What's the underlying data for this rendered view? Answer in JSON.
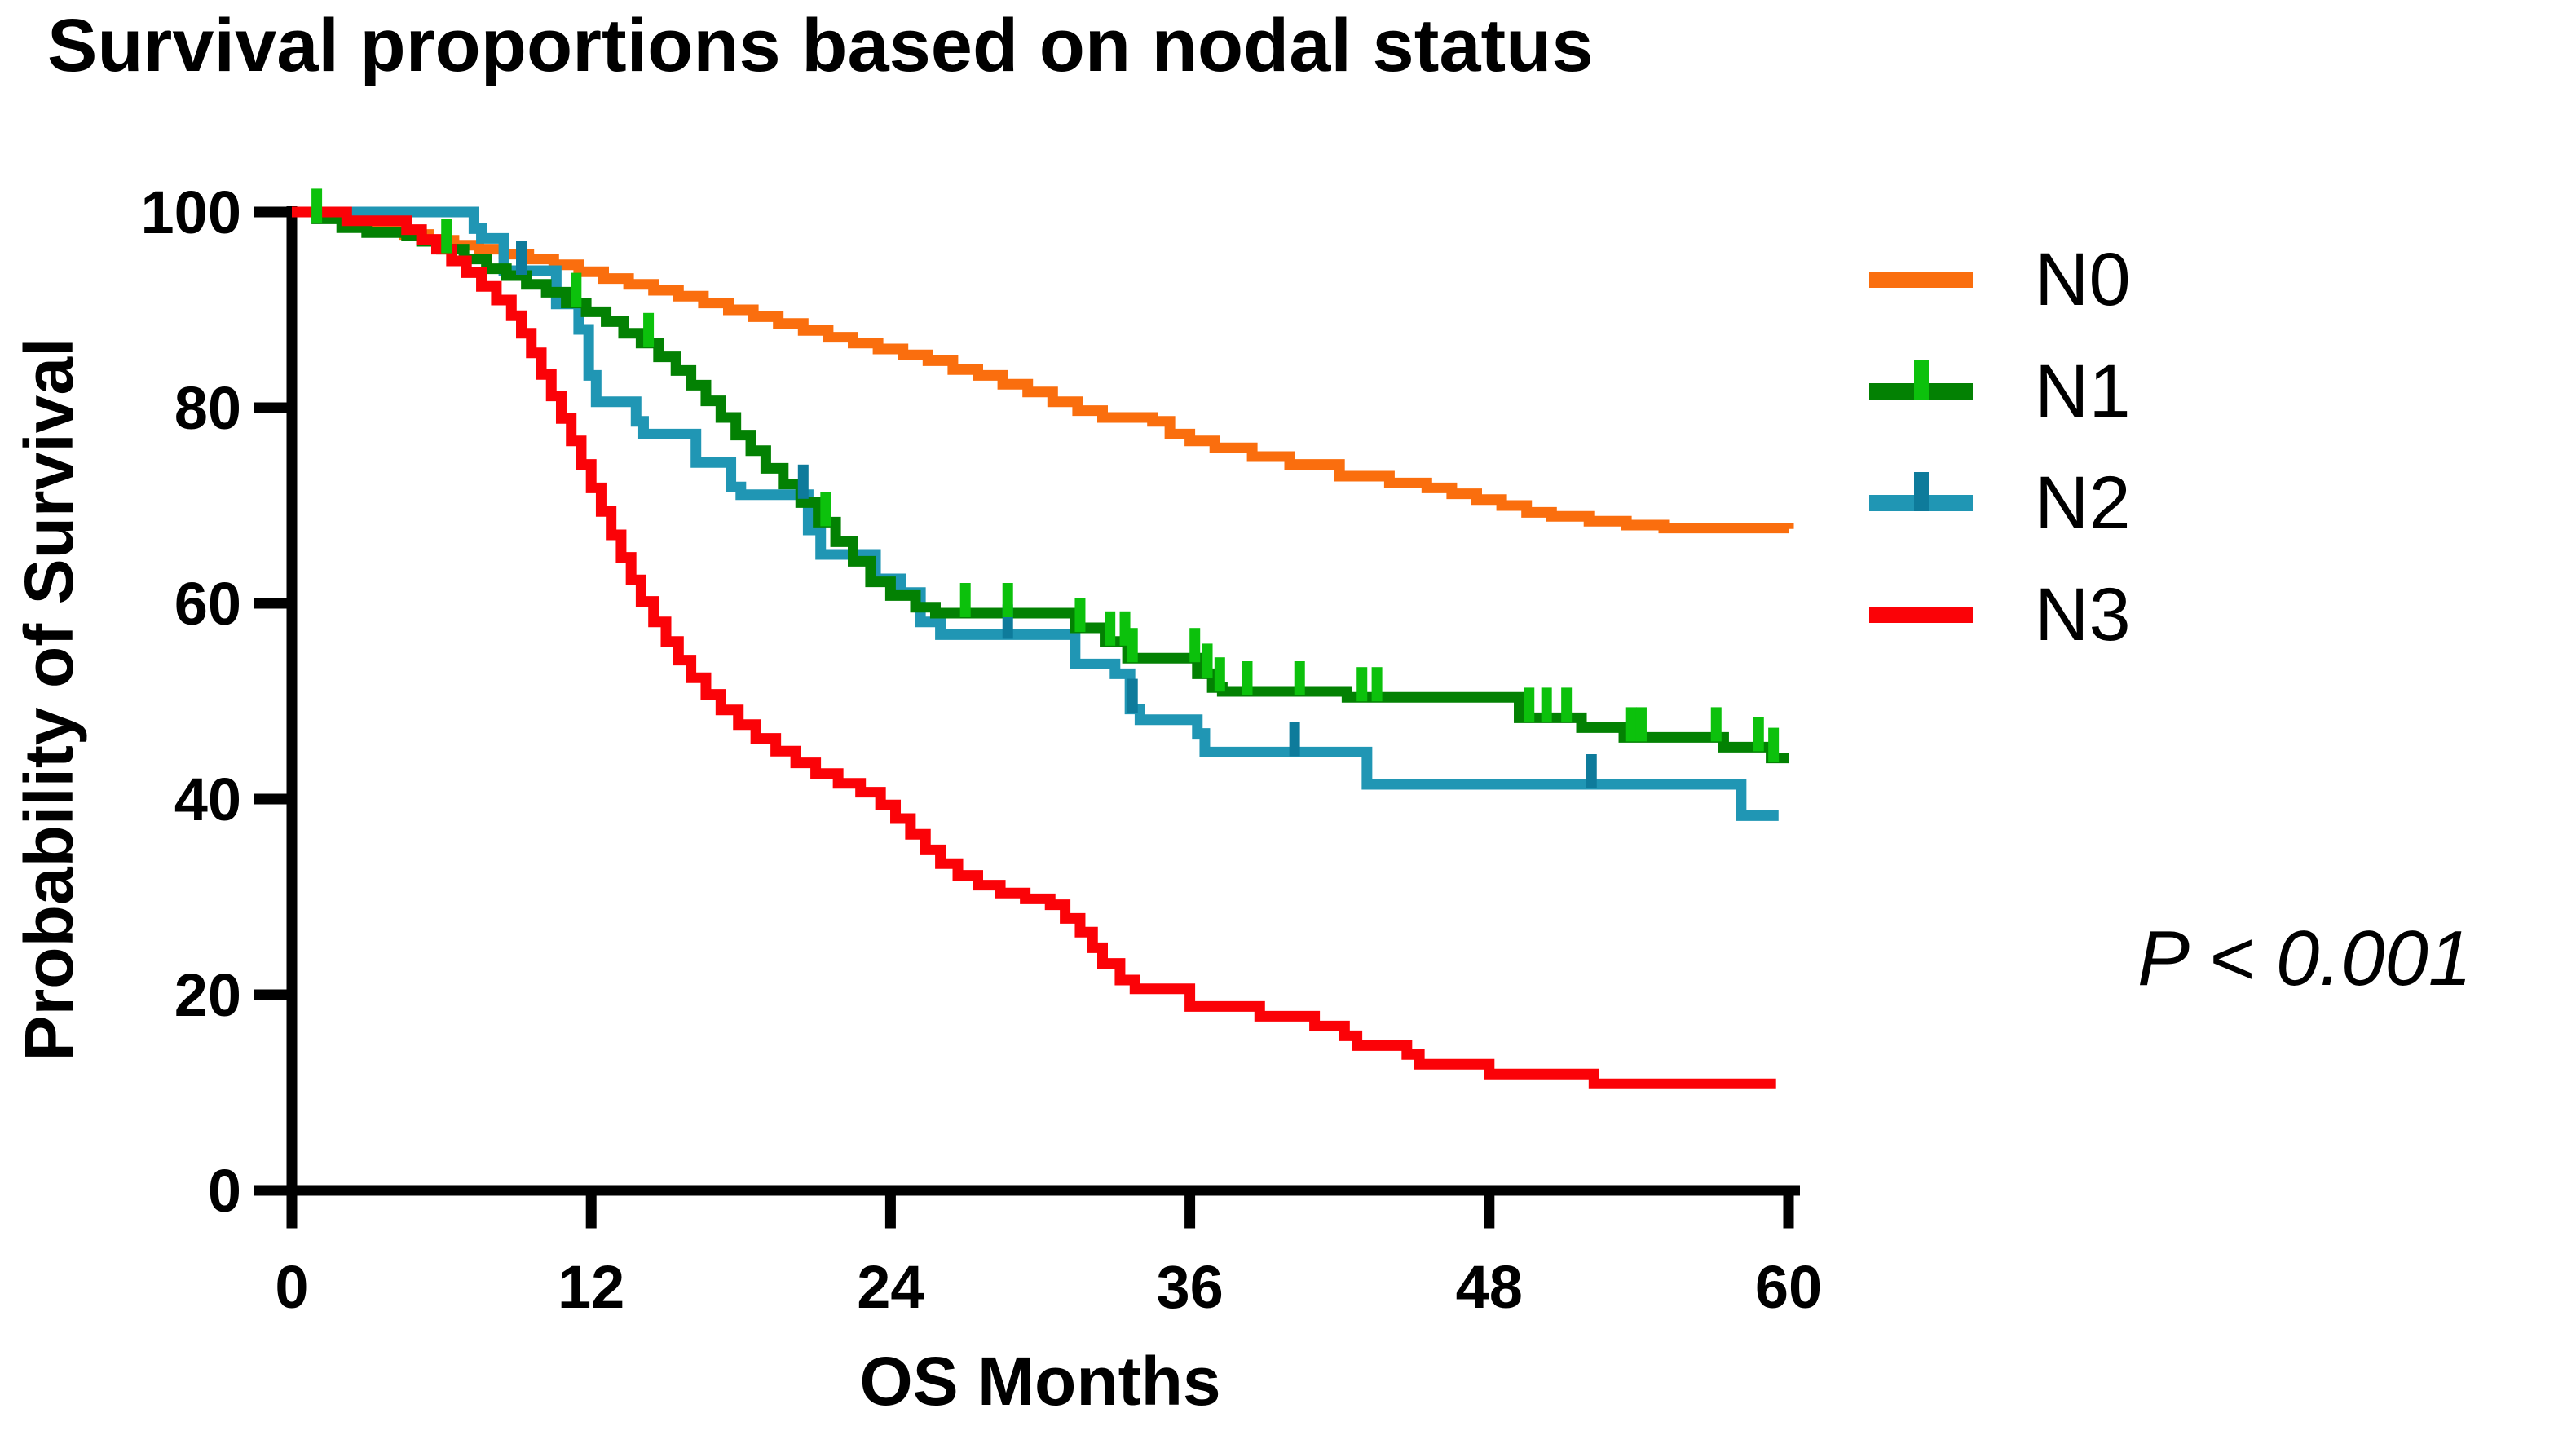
{
  "title": "Survival proportions based on nodal status",
  "y_axis": {
    "label": "Probability of Survival",
    "ticks": [
      0,
      20,
      40,
      60,
      80,
      100
    ],
    "min": 0,
    "max": 100
  },
  "x_axis": {
    "label": "OS Months",
    "ticks": [
      0,
      12,
      24,
      36,
      48,
      60
    ],
    "min": 0,
    "max": 60
  },
  "annotation": {
    "p_value_text": "P < 0.001"
  },
  "colors": {
    "n0": "#FA6E0E",
    "n1": "#038103",
    "n1_censor": "#0CC10C",
    "n2": "#2096B4",
    "n2_censor": "#0E7B9B",
    "n3": "#FB0207",
    "axis": "#000000"
  },
  "legend": [
    {
      "label": "N0",
      "color": "#FA6E0E",
      "censor_color": null
    },
    {
      "label": "N1",
      "color": "#038103",
      "censor_color": "#0CC10C"
    },
    {
      "label": "N2",
      "color": "#2096B4",
      "censor_color": "#0E7B9B"
    },
    {
      "label": "N3",
      "color": "#FB0207",
      "censor_color": null
    }
  ],
  "chart_data": {
    "type": "line",
    "subtype": "kaplan-meier-step",
    "title": "Survival proportions based on nodal status",
    "xlabel": "OS Months",
    "ylabel": "Probability of Survival",
    "xlim": [
      0,
      60
    ],
    "ylim": [
      0,
      100
    ],
    "x_ticks": [
      0,
      12,
      24,
      36,
      48,
      60
    ],
    "y_ticks": [
      0,
      20,
      40,
      60,
      80,
      100
    ],
    "grid": false,
    "legend_position": "right",
    "annotation": "P < 0.001",
    "series": [
      {
        "name": "N0",
        "color": "#FA6E0E",
        "censor_color": null,
        "censors": [],
        "points": [
          [
            0,
            100
          ],
          [
            1.5,
            99.4
          ],
          [
            2.5,
            98.9
          ],
          [
            3.5,
            98.3
          ],
          [
            4.5,
            97.7
          ],
          [
            5.5,
            97.1
          ],
          [
            6.5,
            96.6
          ],
          [
            7.5,
            96.2
          ],
          [
            8.5,
            95.7
          ],
          [
            9.5,
            95.2
          ],
          [
            10.5,
            94.6
          ],
          [
            11.5,
            93.9
          ],
          [
            12.5,
            93.2
          ],
          [
            13.5,
            92.6
          ],
          [
            14.5,
            92.0
          ],
          [
            15.5,
            91.4
          ],
          [
            16.5,
            90.7
          ],
          [
            17.5,
            90.0
          ],
          [
            18.5,
            89.3
          ],
          [
            19.5,
            88.6
          ],
          [
            20.5,
            87.9
          ],
          [
            21.5,
            87.2
          ],
          [
            22.5,
            86.6
          ],
          [
            23.5,
            86.0
          ],
          [
            24.5,
            85.4
          ],
          [
            25.5,
            84.8
          ],
          [
            26.5,
            83.9
          ],
          [
            27.5,
            83.3
          ],
          [
            28.5,
            82.4
          ],
          [
            29.5,
            81.6
          ],
          [
            30.5,
            80.6
          ],
          [
            31.5,
            79.7
          ],
          [
            32.5,
            79.0
          ],
          [
            34.5,
            78.6
          ],
          [
            35.2,
            77.3
          ],
          [
            36.0,
            76.6
          ],
          [
            37.0,
            75.9
          ],
          [
            38.5,
            75.0
          ],
          [
            40.0,
            74.2
          ],
          [
            42.0,
            73.0
          ],
          [
            44.0,
            72.3
          ],
          [
            45.5,
            71.8
          ],
          [
            46.5,
            71.2
          ],
          [
            47.5,
            70.6
          ],
          [
            48.5,
            70.0
          ],
          [
            49.5,
            69.3
          ],
          [
            50.5,
            68.9
          ],
          [
            52.0,
            68.4
          ],
          [
            53.5,
            68.0
          ],
          [
            55.0,
            67.7
          ],
          [
            60.0,
            67.6
          ]
        ]
      },
      {
        "name": "N1",
        "color": "#038103",
        "censor_color": "#0CC10C",
        "censors": [
          1.0,
          6.2,
          11.4,
          14.3,
          21.4,
          27.0,
          28.7,
          31.6,
          32.8,
          33.4,
          33.7,
          36.2,
          36.7,
          37.2,
          38.3,
          40.4,
          42.9,
          43.5,
          49.6,
          50.3,
          51.1,
          53.7,
          54.1,
          57.1,
          58.8,
          59.4
        ],
        "points": [
          [
            0,
            100
          ],
          [
            1.0,
            99.3
          ],
          [
            2.0,
            98.4
          ],
          [
            3.0,
            97.9
          ],
          [
            4.6,
            97.6
          ],
          [
            5.2,
            97.0
          ],
          [
            6.0,
            96.2
          ],
          [
            6.9,
            95.2
          ],
          [
            7.8,
            94.2
          ],
          [
            8.6,
            93.5
          ],
          [
            9.4,
            92.6
          ],
          [
            10.2,
            91.8
          ],
          [
            11.0,
            90.7
          ],
          [
            11.8,
            89.8
          ],
          [
            12.6,
            88.8
          ],
          [
            13.3,
            87.6
          ],
          [
            14.0,
            86.6
          ],
          [
            14.7,
            85.2
          ],
          [
            15.4,
            83.8
          ],
          [
            16.0,
            82.3
          ],
          [
            16.6,
            80.7
          ],
          [
            17.2,
            79.0
          ],
          [
            17.8,
            77.2
          ],
          [
            18.4,
            75.6
          ],
          [
            19.0,
            73.8
          ],
          [
            19.7,
            72.2
          ],
          [
            20.4,
            70.3
          ],
          [
            21.1,
            68.3
          ],
          [
            21.8,
            66.3
          ],
          [
            22.5,
            64.3
          ],
          [
            23.2,
            62.2
          ],
          [
            24.0,
            60.8
          ],
          [
            25.0,
            59.6
          ],
          [
            25.8,
            59.0
          ],
          [
            31.4,
            57.5
          ],
          [
            32.6,
            56.1
          ],
          [
            33.5,
            54.4
          ],
          [
            36.3,
            52.8
          ],
          [
            36.9,
            51.4
          ],
          [
            37.3,
            51.0
          ],
          [
            42.3,
            50.4
          ],
          [
            49.2,
            48.3
          ],
          [
            51.7,
            47.3
          ],
          [
            53.4,
            46.3
          ],
          [
            57.4,
            45.3
          ],
          [
            59.3,
            44.2
          ],
          [
            60.0,
            44.2
          ]
        ]
      },
      {
        "name": "N2",
        "color": "#2096B4",
        "censor_color": "#0E7B9B",
        "censors": [
          9.2,
          20.5,
          28.7,
          33.7,
          40.2,
          52.1
        ],
        "points": [
          [
            0,
            100
          ],
          [
            7.3,
            98.3
          ],
          [
            7.6,
            97.3
          ],
          [
            8.5,
            94.0
          ],
          [
            10.6,
            90.6
          ],
          [
            11.5,
            88.0
          ],
          [
            11.9,
            83.3
          ],
          [
            12.2,
            80.6
          ],
          [
            13.8,
            78.6
          ],
          [
            14.1,
            77.3
          ],
          [
            16.2,
            74.4
          ],
          [
            17.6,
            71.9
          ],
          [
            18.0,
            71.1
          ],
          [
            20.7,
            67.5
          ],
          [
            21.2,
            65.0
          ],
          [
            23.4,
            62.5
          ],
          [
            24.4,
            61.1
          ],
          [
            25.2,
            58.1
          ],
          [
            26.0,
            56.8
          ],
          [
            31.4,
            53.8
          ],
          [
            33.0,
            52.8
          ],
          [
            33.6,
            49.2
          ],
          [
            34.0,
            48.1
          ],
          [
            36.3,
            46.7
          ],
          [
            36.6,
            44.8
          ],
          [
            43.1,
            41.5
          ],
          [
            58.1,
            38.3
          ],
          [
            59.6,
            38.3
          ]
        ]
      },
      {
        "name": "N3",
        "color": "#FB0207",
        "censor_color": null,
        "censors": [],
        "points": [
          [
            0,
            100
          ],
          [
            2.2,
            99.1
          ],
          [
            4.6,
            98.2
          ],
          [
            5.2,
            97.2
          ],
          [
            5.8,
            96.2
          ],
          [
            6.4,
            95.0
          ],
          [
            7.0,
            93.8
          ],
          [
            7.6,
            92.4
          ],
          [
            8.2,
            91.0
          ],
          [
            8.8,
            89.4
          ],
          [
            9.2,
            87.6
          ],
          [
            9.6,
            85.6
          ],
          [
            10.0,
            83.4
          ],
          [
            10.4,
            81.2
          ],
          [
            10.8,
            78.9
          ],
          [
            11.2,
            76.6
          ],
          [
            11.6,
            74.2
          ],
          [
            12.0,
            71.8
          ],
          [
            12.4,
            69.4
          ],
          [
            12.8,
            67.0
          ],
          [
            13.2,
            64.7
          ],
          [
            13.6,
            62.4
          ],
          [
            14.0,
            60.2
          ],
          [
            14.5,
            58.1
          ],
          [
            15.0,
            56.1
          ],
          [
            15.5,
            54.2
          ],
          [
            16.0,
            52.4
          ],
          [
            16.6,
            50.7
          ],
          [
            17.2,
            49.1
          ],
          [
            17.9,
            47.6
          ],
          [
            18.6,
            46.2
          ],
          [
            19.4,
            44.9
          ],
          [
            20.2,
            43.7
          ],
          [
            21.0,
            42.6
          ],
          [
            21.9,
            41.6
          ],
          [
            22.8,
            40.7
          ],
          [
            23.6,
            39.4
          ],
          [
            24.2,
            38.0
          ],
          [
            24.8,
            36.4
          ],
          [
            25.4,
            34.8
          ],
          [
            26.0,
            33.4
          ],
          [
            26.7,
            32.2
          ],
          [
            27.5,
            31.2
          ],
          [
            28.4,
            30.4
          ],
          [
            29.4,
            29.8
          ],
          [
            30.4,
            29.2
          ],
          [
            31.0,
            27.8
          ],
          [
            31.6,
            26.4
          ],
          [
            32.1,
            24.8
          ],
          [
            32.5,
            23.2
          ],
          [
            33.2,
            21.5
          ],
          [
            33.8,
            20.6
          ],
          [
            36.0,
            18.8
          ],
          [
            38.8,
            17.8
          ],
          [
            41.0,
            16.8
          ],
          [
            42.2,
            15.8
          ],
          [
            42.7,
            14.8
          ],
          [
            44.7,
            13.9
          ],
          [
            45.2,
            12.9
          ],
          [
            48.0,
            11.9
          ],
          [
            52.2,
            10.9
          ],
          [
            59.5,
            10.9
          ]
        ]
      }
    ]
  }
}
